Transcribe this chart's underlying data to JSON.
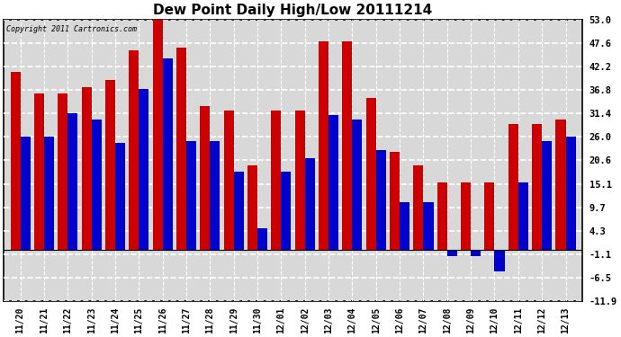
{
  "title": "Dew Point Daily High/Low 20111214",
  "copyright": "Copyright 2011 Cartronics.com",
  "dates": [
    "11/20",
    "11/21",
    "11/22",
    "11/23",
    "11/24",
    "11/25",
    "11/26",
    "11/27",
    "11/28",
    "11/29",
    "11/30",
    "12/01",
    "12/02",
    "12/03",
    "12/04",
    "12/05",
    "12/06",
    "12/07",
    "12/08",
    "12/09",
    "12/10",
    "12/11",
    "12/12",
    "12/13"
  ],
  "high": [
    41.0,
    36.0,
    36.0,
    37.5,
    39.0,
    46.0,
    53.0,
    46.5,
    33.0,
    32.0,
    19.5,
    32.0,
    32.0,
    48.0,
    48.0,
    35.0,
    22.5,
    19.5,
    15.5,
    15.5,
    15.5,
    29.0,
    29.0,
    30.0
  ],
  "low": [
    26.0,
    26.0,
    31.5,
    30.0,
    24.5,
    37.0,
    44.0,
    25.0,
    25.0,
    18.0,
    5.0,
    18.0,
    21.0,
    31.0,
    30.0,
    23.0,
    11.0,
    11.0,
    -1.5,
    -1.5,
    -5.0,
    15.5,
    25.0,
    26.0
  ],
  "high_color": "#cc0000",
  "low_color": "#0000cc",
  "bg_color": "#ffffff",
  "plot_bg_color": "#d8d8d8",
  "ymin": -11.9,
  "ymax": 53.0,
  "ytick_values": [
    -11.9,
    -6.5,
    -1.1,
    4.3,
    9.7,
    15.1,
    20.6,
    26.0,
    31.4,
    36.8,
    42.2,
    47.6,
    53.0
  ],
  "ytick_labels": [
    "-11.9",
    "-6.5",
    "-1.1",
    "4.3",
    "9.7",
    "15.1",
    "20.6",
    "26.0",
    "31.4",
    "36.8",
    "42.2",
    "47.6",
    "53.0"
  ],
  "bar_width": 0.42,
  "figwidth": 6.9,
  "figheight": 3.75,
  "dpi": 100
}
